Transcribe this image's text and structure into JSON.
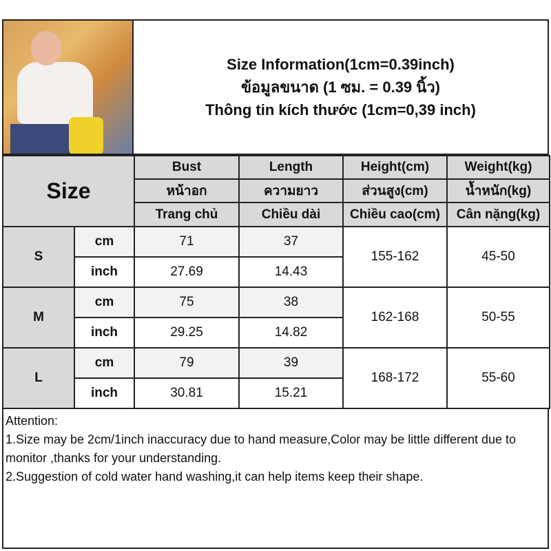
{
  "title": {
    "line1": "Size Information(1cm=0.39inch)",
    "line2": "ข้อมูลขนาด (1 ซม. = 0.39 นิ้ว)",
    "line3": "Thông tin kích thước (1cm=0,39 inch)"
  },
  "header": {
    "size": "Size",
    "columns": [
      {
        "en": "Bust",
        "th": "หน้าอก",
        "vi": "Trang chủ"
      },
      {
        "en": "Length",
        "th": "ความยาว",
        "vi": "Chiều dài"
      },
      {
        "en": "Height(cm)",
        "th": "ส่วนสูง(cm)",
        "vi": "Chiều cao(cm)"
      },
      {
        "en": "Weight(kg)",
        "th": "น้ำหนัก(kg)",
        "vi": "Cân nặng(kg)"
      }
    ]
  },
  "rows": [
    {
      "size": "S",
      "cm_label": "cm",
      "inch_label": "inch",
      "bust_cm": "71",
      "length_cm": "37",
      "bust_in": "27.69",
      "length_in": "14.43",
      "height": "155-162",
      "weight": "45-50"
    },
    {
      "size": "M",
      "cm_label": "cm",
      "inch_label": "inch",
      "bust_cm": "75",
      "length_cm": "38",
      "bust_in": "29.25",
      "length_in": "14.82",
      "height": "162-168",
      "weight": "50-55"
    },
    {
      "size": "L",
      "cm_label": "cm",
      "inch_label": "inch",
      "bust_cm": "79",
      "length_cm": "39",
      "bust_in": "30.81",
      "length_in": "15.21",
      "height": "168-172",
      "weight": "55-60"
    }
  ],
  "notes": {
    "heading": "Attention:",
    "line1": "1.Size may be 2cm/1inch inaccuracy due to hand measure,Color may be little different due to monitor ,thanks for your understanding.",
    "line2": "2.Suggestion of cold water hand washing,it can help items keep their shape."
  }
}
